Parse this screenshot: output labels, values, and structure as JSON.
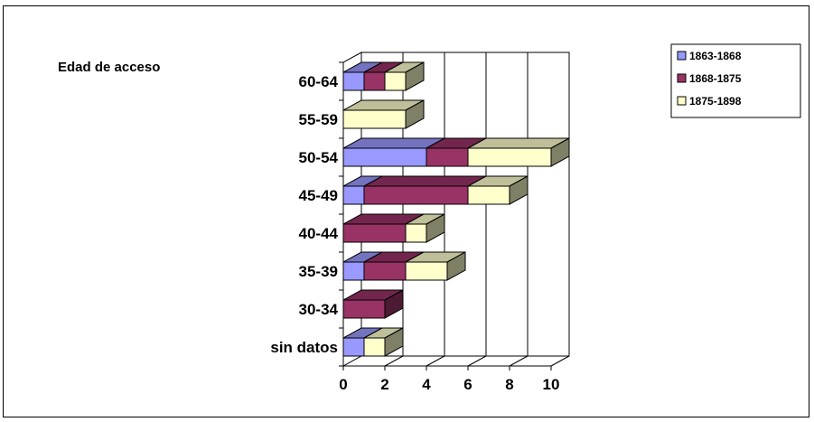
{
  "chart_data": {
    "type": "bar",
    "orientation": "horizontal",
    "stacked": true,
    "three_d": true,
    "ylabel": "Edad de acceso",
    "categories": [
      "60-64",
      "55-59",
      "50-54",
      "45-49",
      "40-44",
      "35-39",
      "30-34",
      "sin datos"
    ],
    "series": [
      {
        "name": "1863-1868",
        "color": "#9999ff",
        "values": [
          1,
          0,
          4,
          1,
          0,
          1,
          0,
          1
        ]
      },
      {
        "name": "1868-1875",
        "color": "#993366",
        "values": [
          1,
          0,
          2,
          5,
          3,
          2,
          2,
          0
        ]
      },
      {
        "name": "1875-1898",
        "color": "#ffffcc",
        "values": [
          1,
          3,
          4,
          2,
          1,
          2,
          0,
          1
        ]
      }
    ],
    "xlim": [
      0,
      10
    ],
    "xticks": [
      "0",
      "2",
      "4",
      "6",
      "8",
      "10"
    ],
    "grid": true,
    "legend_position": "top-right"
  }
}
